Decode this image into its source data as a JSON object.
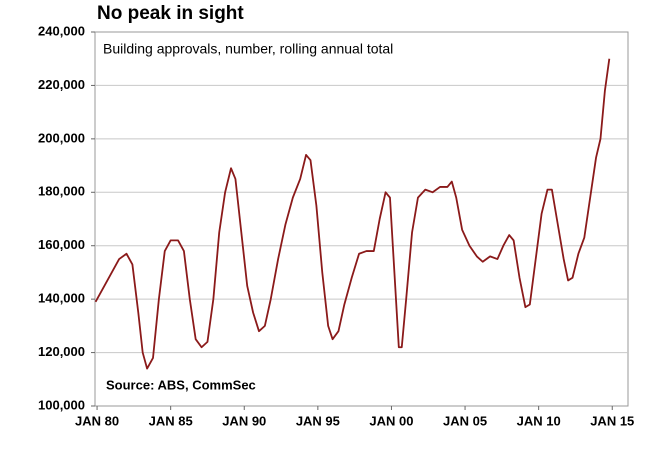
{
  "chart_data": {
    "type": "line",
    "title": "No peak in sight",
    "subtitle": "Building approvals, number, rolling annual total",
    "source": "Source: ABS, CommSec",
    "xlim": [
      1979.86,
      2016.07
    ],
    "ylim": [
      100000,
      240000
    ],
    "xticks": [
      {
        "value": 1980,
        "label": "JAN 80"
      },
      {
        "value": 1985,
        "label": "JAN 85"
      },
      {
        "value": 1990,
        "label": "JAN 90"
      },
      {
        "value": 1995,
        "label": "JAN 95"
      },
      {
        "value": 2000,
        "label": "JAN 00"
      },
      {
        "value": 2005,
        "label": "JAN 05"
      },
      {
        "value": 2010,
        "label": "JAN 10"
      },
      {
        "value": 2015,
        "label": "JAN 15"
      }
    ],
    "yticks": [
      {
        "value": 100000,
        "label": "100,000"
      },
      {
        "value": 120000,
        "label": "120,000"
      },
      {
        "value": 140000,
        "label": "140,000"
      },
      {
        "value": 160000,
        "label": "160,000"
      },
      {
        "value": 180000,
        "label": "180,000"
      },
      {
        "value": 200000,
        "label": "200,000"
      },
      {
        "value": 220000,
        "label": "220,000"
      },
      {
        "value": 240000,
        "label": "240,000"
      }
    ],
    "grid": true,
    "series": [
      {
        "name": "Building approvals",
        "color": "#8b1a1a",
        "x": [
          1979.9,
          1980.5,
          1981,
          1981.5,
          1982,
          1982.4,
          1982.8,
          1983.1,
          1983.4,
          1983.8,
          1984.2,
          1984.6,
          1985,
          1985.5,
          1985.9,
          1986.3,
          1986.7,
          1987.1,
          1987.5,
          1987.9,
          1988.3,
          1988.7,
          1989.1,
          1989.4,
          1989.8,
          1990.2,
          1990.6,
          1991,
          1991.4,
          1991.8,
          1992.3,
          1992.8,
          1993.3,
          1993.8,
          1994.2,
          1994.5,
          1994.9,
          1995.3,
          1995.7,
          1996,
          1996.4,
          1996.8,
          1997.3,
          1997.8,
          1998.3,
          1998.8,
          1999.2,
          1999.6,
          1999.9,
          2000.2,
          2000.5,
          2000.7,
          2001,
          2001.4,
          2001.8,
          2002.3,
          2002.8,
          2003.3,
          2003.8,
          2004.1,
          2004.4,
          2004.8,
          2005.3,
          2005.8,
          2006.2,
          2006.7,
          2007.2,
          2007.6,
          2008,
          2008.3,
          2008.7,
          2009.1,
          2009.4,
          2009.8,
          2010.2,
          2010.6,
          2010.9,
          2011.3,
          2011.7,
          2012,
          2012.3,
          2012.7,
          2013.1,
          2013.5,
          2013.9,
          2014.2,
          2014.5,
          2014.8
        ],
        "values": [
          139000,
          145000,
          150000,
          155000,
          157000,
          153000,
          135000,
          120000,
          114000,
          118000,
          140000,
          158000,
          162000,
          162000,
          158000,
          140000,
          125000,
          122000,
          124000,
          140000,
          165000,
          180000,
          189000,
          185000,
          165000,
          145000,
          135000,
          128000,
          130000,
          140000,
          155000,
          168000,
          178000,
          185000,
          194000,
          192000,
          175000,
          150000,
          130000,
          125000,
          128000,
          138000,
          148000,
          157000,
          158000,
          158000,
          170000,
          180000,
          178000,
          150000,
          122000,
          122000,
          140000,
          165000,
          178000,
          181000,
          180000,
          182000,
          182000,
          184000,
          178000,
          166000,
          160000,
          156000,
          154000,
          156000,
          155000,
          160000,
          164000,
          162000,
          148000,
          137000,
          138000,
          155000,
          172000,
          181000,
          181000,
          168000,
          155000,
          147000,
          148000,
          157000,
          163000,
          178000,
          193000,
          200000,
          218000,
          230000
        ]
      }
    ]
  }
}
